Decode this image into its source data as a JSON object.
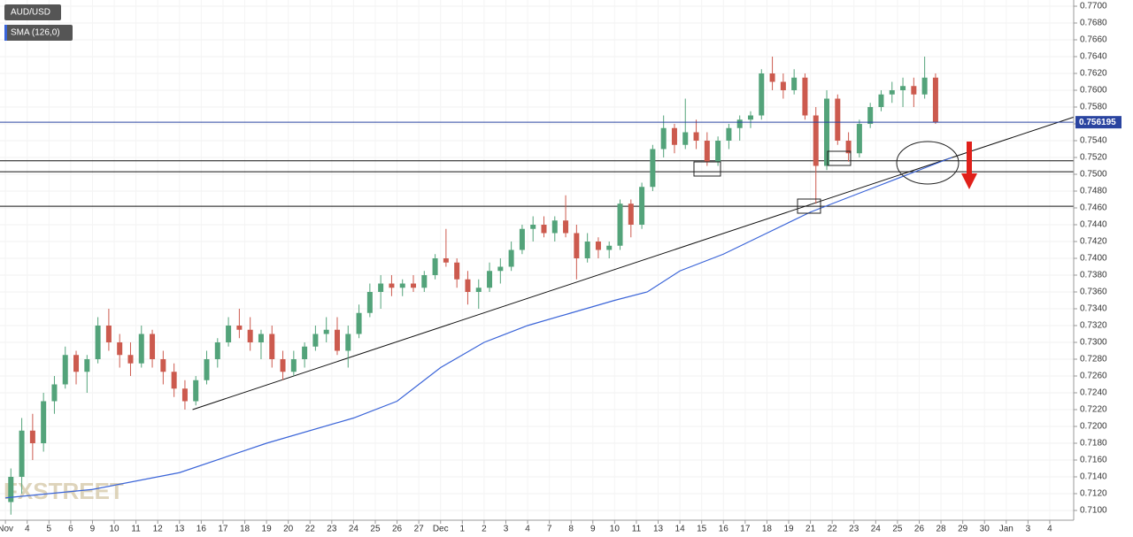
{
  "chart_data": {
    "type": "candlestick",
    "symbol": "AUD/USD",
    "watermark": "FXSTREET",
    "up_color": "#53a37a",
    "down_color": "#cc5a4e",
    "grid": true,
    "xlim": [
      -0.25,
      49.1
    ],
    "ylim": [
      0.71,
      0.77
    ],
    "yticks": [
      {
        "value": 0.71,
        "label": "0.7100"
      },
      {
        "value": 0.712,
        "label": "0.7120"
      },
      {
        "value": 0.714,
        "label": "0.7140"
      },
      {
        "value": 0.716,
        "label": "0.7160"
      },
      {
        "value": 0.718,
        "label": "0.7180"
      },
      {
        "value": 0.72,
        "label": "0.7200"
      },
      {
        "value": 0.722,
        "label": "0.7220"
      },
      {
        "value": 0.724,
        "label": "0.7240"
      },
      {
        "value": 0.726,
        "label": "0.7260"
      },
      {
        "value": 0.728,
        "label": "0.7280"
      },
      {
        "value": 0.73,
        "label": "0.7300"
      },
      {
        "value": 0.732,
        "label": "0.7320"
      },
      {
        "value": 0.734,
        "label": "0.7340"
      },
      {
        "value": 0.736,
        "label": "0.7360"
      },
      {
        "value": 0.738,
        "label": "0.7380"
      },
      {
        "value": 0.74,
        "label": "0.7400"
      },
      {
        "value": 0.742,
        "label": "0.7420"
      },
      {
        "value": 0.744,
        "label": "0.7440"
      },
      {
        "value": 0.746,
        "label": "0.7460"
      },
      {
        "value": 0.748,
        "label": "0.7480"
      },
      {
        "value": 0.75,
        "label": "0.7500"
      },
      {
        "value": 0.752,
        "label": "0.7520"
      },
      {
        "value": 0.754,
        "label": "0.7540"
      },
      {
        "value": 0.756,
        "label": "0.7560"
      },
      {
        "value": 0.758,
        "label": "0.7580"
      },
      {
        "value": 0.76,
        "label": "0.7600"
      },
      {
        "value": 0.762,
        "label": "0.7620"
      },
      {
        "value": 0.764,
        "label": "0.7640"
      },
      {
        "value": 0.766,
        "label": "0.7660"
      },
      {
        "value": 0.768,
        "label": "0.7680"
      },
      {
        "value": 0.77,
        "label": "0.7700"
      }
    ],
    "xticks": [
      {
        "value": 0,
        "label": "Nov"
      },
      {
        "value": 1,
        "label": "4"
      },
      {
        "value": 2,
        "label": "5"
      },
      {
        "value": 3,
        "label": "6"
      },
      {
        "value": 4,
        "label": "9"
      },
      {
        "value": 5,
        "label": "10"
      },
      {
        "value": 6,
        "label": "11"
      },
      {
        "value": 7,
        "label": "12"
      },
      {
        "value": 8,
        "label": "13"
      },
      {
        "value": 9,
        "label": "16"
      },
      {
        "value": 10,
        "label": "17"
      },
      {
        "value": 11,
        "label": "18"
      },
      {
        "value": 12,
        "label": "19"
      },
      {
        "value": 13,
        "label": "20"
      },
      {
        "value": 14,
        "label": "22"
      },
      {
        "value": 15,
        "label": "23"
      },
      {
        "value": 16,
        "label": "24"
      },
      {
        "value": 17,
        "label": "25"
      },
      {
        "value": 18,
        "label": "26"
      },
      {
        "value": 19,
        "label": "27"
      },
      {
        "value": 20,
        "label": "Dec"
      },
      {
        "value": 21,
        "label": "1"
      },
      {
        "value": 22,
        "label": "2"
      },
      {
        "value": 23,
        "label": "3"
      },
      {
        "value": 24,
        "label": "4"
      },
      {
        "value": 25,
        "label": "7"
      },
      {
        "value": 26,
        "label": "8"
      },
      {
        "value": 27,
        "label": "9"
      },
      {
        "value": 28,
        "label": "10"
      },
      {
        "value": 29,
        "label": "11"
      },
      {
        "value": 30,
        "label": "13"
      },
      {
        "value": 31,
        "label": "14"
      },
      {
        "value": 32,
        "label": "15"
      },
      {
        "value": 33,
        "label": "16"
      },
      {
        "value": 34,
        "label": "17"
      },
      {
        "value": 35,
        "label": "18"
      },
      {
        "value": 36,
        "label": "19"
      },
      {
        "value": 37,
        "label": "21"
      },
      {
        "value": 38,
        "label": "22"
      },
      {
        "value": 39,
        "label": "23"
      },
      {
        "value": 40,
        "label": "24"
      },
      {
        "value": 41,
        "label": "25"
      },
      {
        "value": 42,
        "label": "26"
      },
      {
        "value": 43,
        "label": "28"
      },
      {
        "value": 44,
        "label": "29"
      },
      {
        "value": 45,
        "label": "30"
      },
      {
        "value": 46,
        "label": "Jan"
      },
      {
        "value": 47,
        "label": "3"
      },
      {
        "value": 48,
        "label": "4"
      }
    ],
    "candles": [
      [
        0.25,
        0.711,
        0.715,
        0.7095,
        0.714
      ],
      [
        0.75,
        0.714,
        0.721,
        0.712,
        0.7195
      ],
      [
        1.25,
        0.7195,
        0.7215,
        0.716,
        0.718
      ],
      [
        1.75,
        0.718,
        0.724,
        0.717,
        0.723
      ],
      [
        2.25,
        0.723,
        0.726,
        0.7215,
        0.725
      ],
      [
        2.75,
        0.725,
        0.7295,
        0.7245,
        0.7285
      ],
      [
        3.25,
        0.7285,
        0.729,
        0.725,
        0.7265
      ],
      [
        3.75,
        0.7265,
        0.7285,
        0.724,
        0.728
      ],
      [
        4.25,
        0.728,
        0.733,
        0.7275,
        0.732
      ],
      [
        4.75,
        0.732,
        0.734,
        0.729,
        0.73
      ],
      [
        5.25,
        0.73,
        0.731,
        0.727,
        0.7285
      ],
      [
        5.75,
        0.7285,
        0.73,
        0.726,
        0.7275
      ],
      [
        6.25,
        0.7275,
        0.732,
        0.727,
        0.731
      ],
      [
        6.75,
        0.731,
        0.7315,
        0.727,
        0.728
      ],
      [
        7.25,
        0.728,
        0.729,
        0.725,
        0.7265
      ],
      [
        7.75,
        0.7265,
        0.7275,
        0.7235,
        0.7245
      ],
      [
        8.25,
        0.7245,
        0.7255,
        0.722,
        0.723
      ],
      [
        8.75,
        0.723,
        0.726,
        0.7225,
        0.7255
      ],
      [
        9.25,
        0.7255,
        0.729,
        0.725,
        0.728
      ],
      [
        9.75,
        0.728,
        0.7305,
        0.727,
        0.73
      ],
      [
        10.25,
        0.73,
        0.733,
        0.7295,
        0.732
      ],
      [
        10.75,
        0.732,
        0.734,
        0.7305,
        0.7315
      ],
      [
        11.25,
        0.7315,
        0.733,
        0.729,
        0.73
      ],
      [
        11.75,
        0.73,
        0.7315,
        0.728,
        0.731
      ],
      [
        12.25,
        0.731,
        0.732,
        0.727,
        0.728
      ],
      [
        12.75,
        0.728,
        0.729,
        0.7255,
        0.7265
      ],
      [
        13.25,
        0.7265,
        0.729,
        0.726,
        0.728
      ],
      [
        13.75,
        0.728,
        0.73,
        0.727,
        0.7295
      ],
      [
        14.25,
        0.7295,
        0.732,
        0.729,
        0.731
      ],
      [
        14.75,
        0.731,
        0.733,
        0.73,
        0.7315
      ],
      [
        15.25,
        0.7315,
        0.733,
        0.7285,
        0.729
      ],
      [
        15.75,
        0.729,
        0.732,
        0.727,
        0.731
      ],
      [
        16.25,
        0.731,
        0.7345,
        0.7305,
        0.7335
      ],
      [
        16.75,
        0.7335,
        0.737,
        0.733,
        0.736
      ],
      [
        17.25,
        0.736,
        0.738,
        0.734,
        0.737
      ],
      [
        17.75,
        0.737,
        0.738,
        0.7355,
        0.7365
      ],
      [
        18.25,
        0.7365,
        0.7375,
        0.7355,
        0.737
      ],
      [
        18.75,
        0.737,
        0.738,
        0.736,
        0.7365
      ],
      [
        19.25,
        0.7365,
        0.7385,
        0.736,
        0.738
      ],
      [
        19.75,
        0.738,
        0.7405,
        0.7375,
        0.74
      ],
      [
        20.25,
        0.74,
        0.7435,
        0.739,
        0.7395
      ],
      [
        20.75,
        0.7395,
        0.74,
        0.7365,
        0.7375
      ],
      [
        21.25,
        0.7375,
        0.7385,
        0.7345,
        0.736
      ],
      [
        21.75,
        0.736,
        0.7375,
        0.734,
        0.7365
      ],
      [
        22.25,
        0.7365,
        0.7395,
        0.736,
        0.7385
      ],
      [
        22.75,
        0.7385,
        0.74,
        0.737,
        0.739
      ],
      [
        23.25,
        0.739,
        0.742,
        0.7385,
        0.741
      ],
      [
        23.75,
        0.741,
        0.744,
        0.7405,
        0.7435
      ],
      [
        24.25,
        0.7435,
        0.745,
        0.742,
        0.744
      ],
      [
        24.75,
        0.744,
        0.745,
        0.7425,
        0.743
      ],
      [
        25.25,
        0.743,
        0.745,
        0.742,
        0.7445
      ],
      [
        25.75,
        0.7445,
        0.7475,
        0.7425,
        0.743
      ],
      [
        26.25,
        0.743,
        0.744,
        0.7375,
        0.74
      ],
      [
        26.75,
        0.74,
        0.743,
        0.7395,
        0.742
      ],
      [
        27.25,
        0.742,
        0.7425,
        0.74,
        0.741
      ],
      [
        27.75,
        0.741,
        0.742,
        0.74,
        0.7415
      ],
      [
        28.25,
        0.7415,
        0.747,
        0.741,
        0.7465
      ],
      [
        28.75,
        0.7465,
        0.747,
        0.7425,
        0.744
      ],
      [
        29.25,
        0.744,
        0.749,
        0.7435,
        0.7485
      ],
      [
        29.75,
        0.7485,
        0.7535,
        0.748,
        0.753
      ],
      [
        30.25,
        0.753,
        0.757,
        0.752,
        0.7555
      ],
      [
        30.75,
        0.7555,
        0.756,
        0.7525,
        0.7535
      ],
      [
        31.25,
        0.7535,
        0.759,
        0.753,
        0.755
      ],
      [
        31.75,
        0.755,
        0.7565,
        0.753,
        0.754
      ],
      [
        32.25,
        0.754,
        0.755,
        0.751,
        0.7515
      ],
      [
        32.75,
        0.7515,
        0.7545,
        0.751,
        0.754
      ],
      [
        33.25,
        0.754,
        0.756,
        0.753,
        0.7555
      ],
      [
        33.75,
        0.7555,
        0.757,
        0.754,
        0.7565
      ],
      [
        34.25,
        0.7565,
        0.7575,
        0.7555,
        0.757
      ],
      [
        34.75,
        0.757,
        0.7625,
        0.7565,
        0.762
      ],
      [
        35.25,
        0.762,
        0.764,
        0.76,
        0.761
      ],
      [
        35.75,
        0.761,
        0.762,
        0.759,
        0.76
      ],
      [
        36.25,
        0.76,
        0.7625,
        0.7595,
        0.7615
      ],
      [
        36.75,
        0.7615,
        0.762,
        0.7565,
        0.757
      ],
      [
        37.25,
        0.757,
        0.758,
        0.7465,
        0.751
      ],
      [
        37.75,
        0.751,
        0.76,
        0.7505,
        0.759
      ],
      [
        38.25,
        0.759,
        0.7595,
        0.7535,
        0.754
      ],
      [
        38.75,
        0.754,
        0.755,
        0.7515,
        0.7525
      ],
      [
        39.25,
        0.7525,
        0.7565,
        0.752,
        0.756
      ],
      [
        39.75,
        0.756,
        0.7585,
        0.7555,
        0.758
      ],
      [
        40.25,
        0.758,
        0.76,
        0.7575,
        0.7595
      ],
      [
        40.75,
        0.7595,
        0.761,
        0.7585,
        0.76
      ],
      [
        41.25,
        0.76,
        0.7615,
        0.758,
        0.7605
      ],
      [
        41.75,
        0.7605,
        0.7615,
        0.758,
        0.7595
      ],
      [
        42.25,
        0.7595,
        0.764,
        0.759,
        0.7615
      ],
      [
        42.75,
        0.7615,
        0.762,
        0.756,
        0.7562
      ]
    ],
    "sma": {
      "name": "SMA (126,0)",
      "color": "#3a64d8",
      "x": [
        0,
        4,
        8,
        12,
        16,
        18,
        20,
        22,
        24,
        26,
        28,
        29.5,
        31,
        33,
        35,
        37,
        38.5,
        40,
        42,
        43.5
      ],
      "values": [
        0.7115,
        0.7125,
        0.7145,
        0.718,
        0.721,
        0.723,
        0.727,
        0.73,
        0.732,
        0.7335,
        0.735,
        0.736,
        0.7385,
        0.7405,
        0.743,
        0.7455,
        0.747,
        0.7485,
        0.7505,
        0.752
      ]
    },
    "price_line": {
      "value": 0.756195,
      "color": "#2a44a0"
    },
    "levels": [
      0.7516,
      0.7503,
      0.7462
    ],
    "trendline": {
      "x": [
        8.6,
        49.1
      ],
      "values": [
        0.722,
        0.7568
      ]
    }
  }
}
